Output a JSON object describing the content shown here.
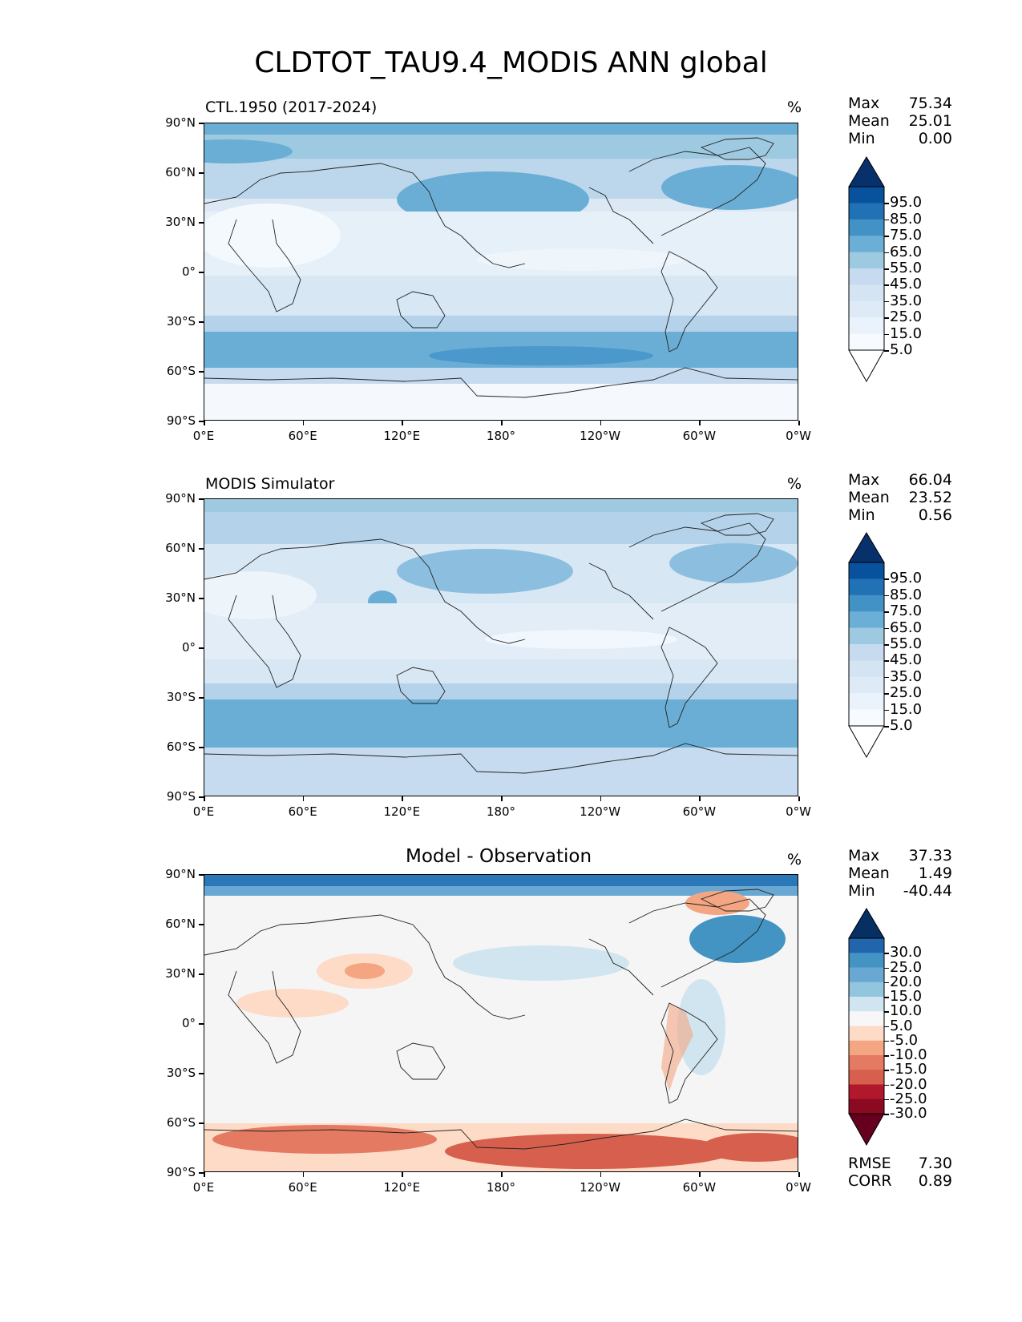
{
  "title": "CLDTOT_TAU9.4_MODIS ANN global",
  "units": "%",
  "lat_ticks": [
    "90°N",
    "60°N",
    "30°N",
    "0°",
    "30°S",
    "60°S",
    "90°S"
  ],
  "lon_ticks": [
    "0°E",
    "60°E",
    "120°E",
    "180°",
    "120°W",
    "60°W",
    "0°W"
  ],
  "panels": [
    {
      "title": "CTL.1950 (2017-2024)",
      "stats": {
        "max_label": "Max",
        "max": "75.34",
        "mean_label": "Mean",
        "mean": "25.01",
        "min_label": "Min",
        "min": "0.00"
      },
      "colorbar": {
        "levels": [
          "95.0",
          "85.0",
          "75.0",
          "65.0",
          "55.0",
          "45.0",
          "35.0",
          "25.0",
          "15.0",
          "5.0"
        ],
        "colors": [
          "#08306b",
          "#08519c",
          "#2171b5",
          "#4292c6",
          "#6baed6",
          "#9ecae1",
          "#c6dbef",
          "#d4e4f3",
          "#deebf7",
          "#eaf3fb",
          "#f7fbff",
          "#ffffff"
        ]
      }
    },
    {
      "title": "MODIS Simulator",
      "stats": {
        "max_label": "Max",
        "max": "66.04",
        "mean_label": "Mean",
        "mean": "23.52",
        "min_label": "Min",
        "min": "0.56"
      },
      "colorbar": {
        "levels": [
          "95.0",
          "85.0",
          "75.0",
          "65.0",
          "55.0",
          "45.0",
          "35.0",
          "25.0",
          "15.0",
          "5.0"
        ],
        "colors": [
          "#08306b",
          "#08519c",
          "#2171b5",
          "#4292c6",
          "#6baed6",
          "#9ecae1",
          "#c6dbef",
          "#d4e4f3",
          "#deebf7",
          "#eaf3fb",
          "#f7fbff",
          "#ffffff"
        ]
      }
    },
    {
      "title": "Model - Observation",
      "stats": {
        "max_label": "Max",
        "max": "37.33",
        "mean_label": "Mean",
        "mean": "1.49",
        "min_label": "Min",
        "min": "-40.44",
        "rmse_label": "RMSE",
        "rmse": "7.30",
        "corr_label": "CORR",
        "corr": "0.89"
      },
      "colorbar": {
        "levels": [
          "30.0",
          "25.0",
          "20.0",
          "15.0",
          "10.0",
          "5.0",
          "-5.0",
          "-10.0",
          "-15.0",
          "-20.0",
          "-25.0",
          "-30.0"
        ],
        "colors": [
          "#053061",
          "#2166ac",
          "#4393c3",
          "#6aa8d4",
          "#92c5de",
          "#d1e5f0",
          "#f7f7f7",
          "#fddbc7",
          "#f4a582",
          "#e47a62",
          "#d6604d",
          "#b2182b",
          "#8b0a22",
          "#67001f"
        ]
      }
    }
  ]
}
